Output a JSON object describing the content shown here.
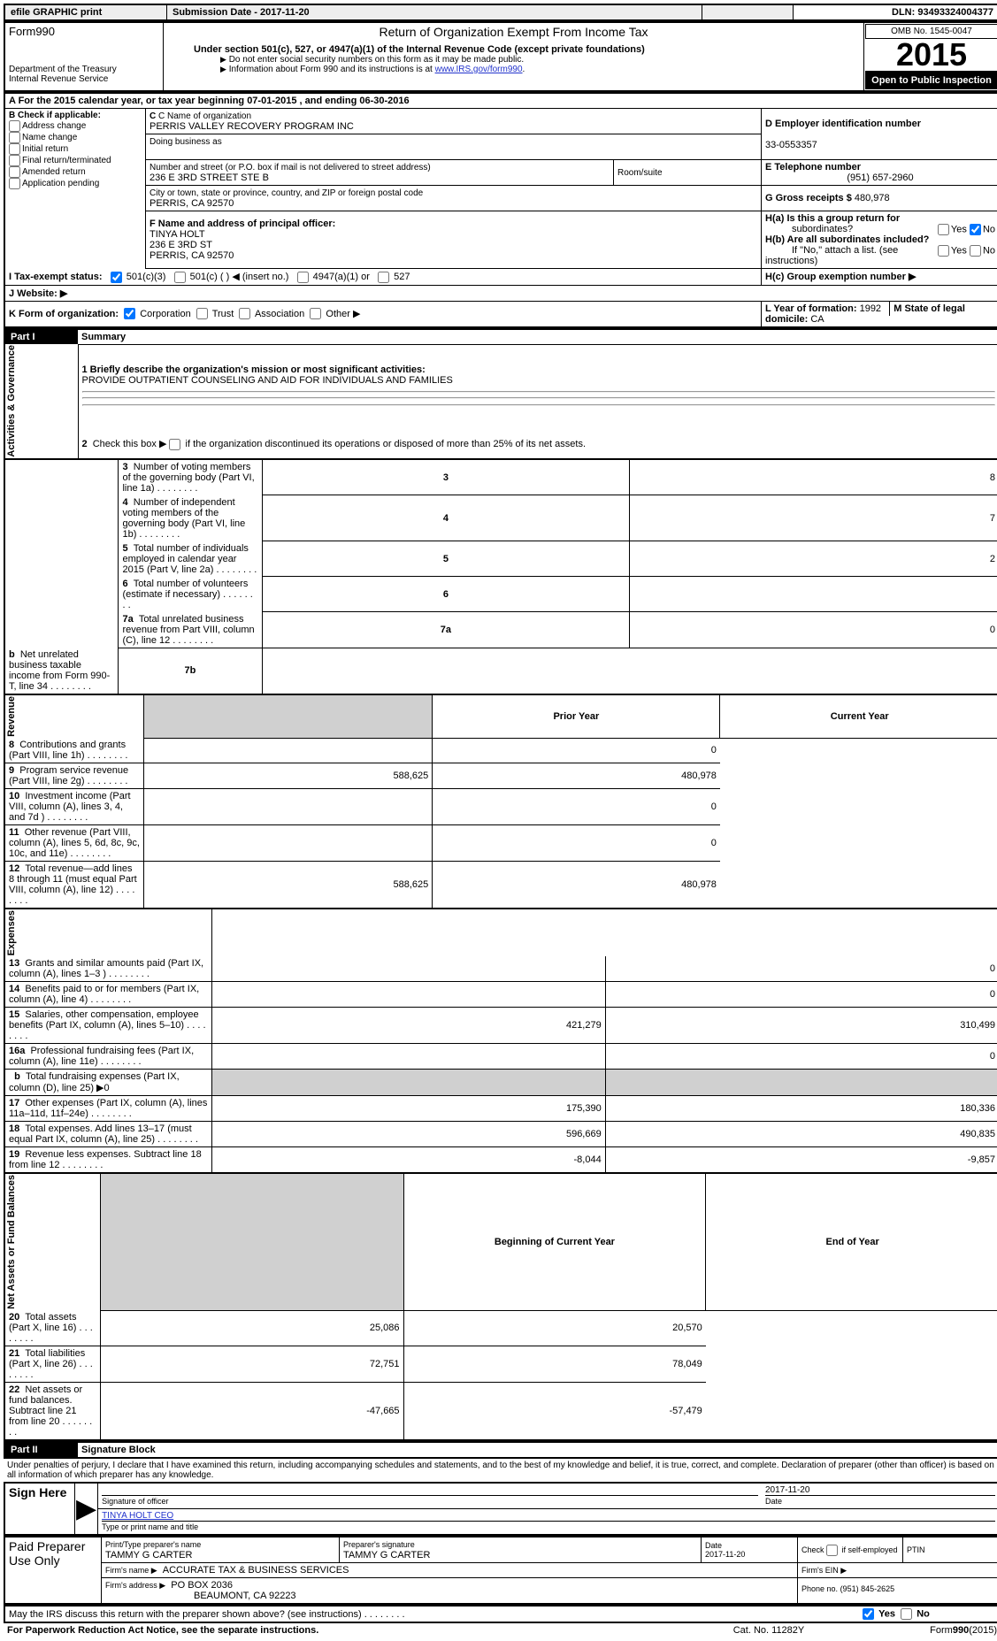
{
  "meta": {
    "efile_label": "efile GRAPHIC print",
    "submission_label": "Submission Date - 2017-11-20",
    "dln_label": "DLN: 93493324004377",
    "form_name": "Form990",
    "return_title": "Return of Organization Exempt From Income Tax",
    "subtitle_bold": "Under section 501(c), 527, or 4947(a)(1) of the Internal Revenue Code (except private foundations)",
    "subtitle_1": "Do not enter social security numbers on this form as it may be made public.",
    "subtitle_2_pre": "Information about Form 990 and its instructions is at ",
    "subtitle_2_link": "www.IRS.gov/form990",
    "subtitle_2_post": ".",
    "dept": "Department of the Treasury",
    "irs": "Internal Revenue Service",
    "omb": "OMB No. 1545-0047",
    "year": "2015",
    "inspect": "Open to Public Inspection"
  },
  "header": {
    "a_line": "A  For the 2015 calendar year, or tax year beginning 07-01-2015   , and ending 06-30-2016",
    "b_label": "B Check if applicable:",
    "b_opts": [
      "Address change",
      "Name change",
      "Initial return",
      "Final return/terminated",
      "Amended return",
      "Application pending"
    ],
    "c_label": "C Name of organization",
    "c_name": "PERRIS VALLEY RECOVERY PROGRAM INC",
    "dba_label": "Doing business as",
    "street_label": "Number and street (or P.O. box if mail is not delivered to street address)",
    "room_label": "Room/suite",
    "street": "236 E 3RD STREET STE B",
    "city_label": "City or town, state or province, country, and ZIP or foreign postal code",
    "city": "PERRIS, CA  92570",
    "d_label": "D Employer identification number",
    "d_val": "33-0553357",
    "e_label": "E Telephone number",
    "e_val": "(951) 657-2960",
    "g_label": "G Gross receipts $",
    "g_val": "480,978",
    "f_label": "F  Name and address of principal officer:",
    "f_name": "TINYA HOLT",
    "f_street": "236 E 3RD ST",
    "f_city": "PERRIS, CA  92570",
    "ha_label": "H(a)  Is this a group return for",
    "ha_sub": "subordinates?",
    "hb_label": "H(b)  Are all subordinates included?",
    "hb_note": "If \"No,\" attach a list. (see instructions)",
    "hc_label": "H(c)  Group exemption number ▶",
    "i_label": "I  Tax-exempt status:",
    "i_opts": [
      "501(c)(3)",
      "501(c) (  ) ◀ (insert no.)",
      "4947(a)(1) or",
      "527"
    ],
    "j_label": "J  Website: ▶",
    "k_label": "K Form of organization:",
    "k_opts": [
      "Corporation",
      "Trust",
      "Association",
      "Other ▶"
    ],
    "l_label": "L Year of formation:",
    "l_val": "1992",
    "m_label": "M State of legal domicile:",
    "m_val": "CA"
  },
  "part1": {
    "part_label": "Part I",
    "part_title": "Summary",
    "q1_label": "1 Briefly describe the organization's mission or most significant activities:",
    "q1_text": "PROVIDE OUTPATIENT COUNSELING AND AID FOR INDIVIDUALS AND FAMILIES",
    "q2": "2  Check this box ▶ ☐  if the organization discontinued its operations or disposed of more than 25% of its net assets.",
    "section_gov": "Activities & Governance",
    "section_rev": "Revenue",
    "section_exp": "Expenses",
    "section_net": "Net Assets or Fund Balances",
    "rows_gov": [
      {
        "n": "3",
        "t": "Number of voting members of the governing body (Part VI, line 1a)",
        "key": "3",
        "v": "8"
      },
      {
        "n": "4",
        "t": "Number of independent voting members of the governing body (Part VI, line 1b)",
        "key": "4",
        "v": "7"
      },
      {
        "n": "5",
        "t": "Total number of individuals employed in calendar year 2015 (Part V, line 2a)",
        "key": "5",
        "v": "2"
      },
      {
        "n": "6",
        "t": "Total number of volunteers (estimate if necessary)",
        "key": "6",
        "v": ""
      },
      {
        "n": "7a",
        "t": "Total unrelated business revenue from Part VIII, column (C), line 12",
        "key": "7a",
        "v": "0"
      },
      {
        "n": "b",
        "t": "Net unrelated business taxable income from Form 990-T, line 34",
        "key": "7b",
        "v": ""
      }
    ],
    "col_prior": "Prior Year",
    "col_current": "Current Year",
    "rows_fin": [
      {
        "n": "8",
        "t": "Contributions and grants (Part VIII, line 1h)",
        "p": "",
        "c": "0"
      },
      {
        "n": "9",
        "t": "Program service revenue (Part VIII, line 2g)",
        "p": "588,625",
        "c": "480,978"
      },
      {
        "n": "10",
        "t": "Investment income (Part VIII, column (A), lines 3, 4, and 7d )",
        "p": "",
        "c": "0"
      },
      {
        "n": "11",
        "t": "Other revenue (Part VIII, column (A), lines 5, 6d, 8c, 9c, 10c, and 11e)",
        "p": "",
        "c": "0"
      },
      {
        "n": "12",
        "t": "Total revenue—add lines 8 through 11 (must equal Part VIII, column (A), line 12)",
        "p": "588,625",
        "c": "480,978"
      }
    ],
    "rows_exp": [
      {
        "n": "13",
        "t": "Grants and similar amounts paid (Part IX, column (A), lines 1–3 )",
        "p": "",
        "c": "0"
      },
      {
        "n": "14",
        "t": "Benefits paid to or for members (Part IX, column (A), line 4)",
        "p": "",
        "c": "0"
      },
      {
        "n": "15",
        "t": "Salaries, other compensation, employee benefits (Part IX, column (A), lines 5–10)",
        "p": "421,279",
        "c": "310,499"
      },
      {
        "n": "16a",
        "t": "Professional fundraising fees (Part IX, column (A), line 11e)",
        "p": "",
        "c": "0"
      },
      {
        "n": "b",
        "t": "Total fundraising expenses (Part IX, column (D), line 25) ▶0",
        "grey": true
      },
      {
        "n": "17",
        "t": "Other expenses (Part IX, column (A), lines 11a–11d, 11f–24e)",
        "p": "175,390",
        "c": "180,336"
      },
      {
        "n": "18",
        "t": "Total expenses. Add lines 13–17 (must equal Part IX, column (A), line 25)",
        "p": "596,669",
        "c": "490,835"
      },
      {
        "n": "19",
        "t": "Revenue less expenses. Subtract line 18 from line 12",
        "p": "-8,044",
        "c": "-9,857"
      }
    ],
    "col_begin": "Beginning of Current Year",
    "col_end": "End of Year",
    "rows_net": [
      {
        "n": "20",
        "t": "Total assets (Part X, line 16)",
        "p": "25,086",
        "c": "20,570"
      },
      {
        "n": "21",
        "t": "Total liabilities (Part X, line 26)",
        "p": "72,751",
        "c": "78,049"
      },
      {
        "n": "22",
        "t": "Net assets or fund balances. Subtract line 21 from line 20",
        "p": "-47,665",
        "c": "-57,479"
      }
    ]
  },
  "part2": {
    "part_label": "Part II",
    "part_title": "Signature Block",
    "declaration": "Under penalties of perjury, I declare that I have examined this return, including accompanying schedules and statements, and to the best of my knowledge and belief, it is true, correct, and complete. Declaration of preparer (other than officer) is based on all information of which preparer has any knowledge.",
    "sign_here": "Sign Here",
    "sig_officer": "Signature of officer",
    "sig_date": "Date",
    "sig_date_val": "2017-11-20",
    "sig_name": "TINYA HOLT CEO",
    "sig_type": "Type or print name and title",
    "paid": "Paid Preparer Use Only",
    "prep_name_label": "Print/Type preparer's name",
    "prep_name": "TAMMY G CARTER",
    "prep_sig_label": "Preparer's signature",
    "prep_sig": "TAMMY G CARTER",
    "prep_date_label": "Date",
    "prep_date": "2017-11-20",
    "check_label": "Check ☐ if self-employed",
    "ptin_label": "PTIN",
    "firm_name_label": "Firm's name    ▶",
    "firm_name": "ACCURATE TAX & BUSINESS SERVICES",
    "firm_ein_label": "Firm's EIN ▶",
    "firm_addr_label": "Firm's address ▶",
    "firm_addr1": "PO BOX 2036",
    "firm_addr2": "BEAUMONT, CA  92223",
    "firm_phone_label": "Phone no.",
    "firm_phone": "(951) 845-2625",
    "discuss": "May the IRS discuss this return with the preparer shown above? (see instructions)",
    "paperwork": "For Paperwork Reduction Act Notice, see the separate instructions.",
    "catno": "Cat. No. 11282Y",
    "formver": "Form990(2015)"
  },
  "style": {
    "border_color": "#000000",
    "bg_color": "#ffffff",
    "grey_bg": "#d0d0d0",
    "link_color": "#2233cc",
    "font_family": "Verdana, Arial, sans-serif",
    "base_fontsize": 11,
    "year_fontsize": 36
  }
}
